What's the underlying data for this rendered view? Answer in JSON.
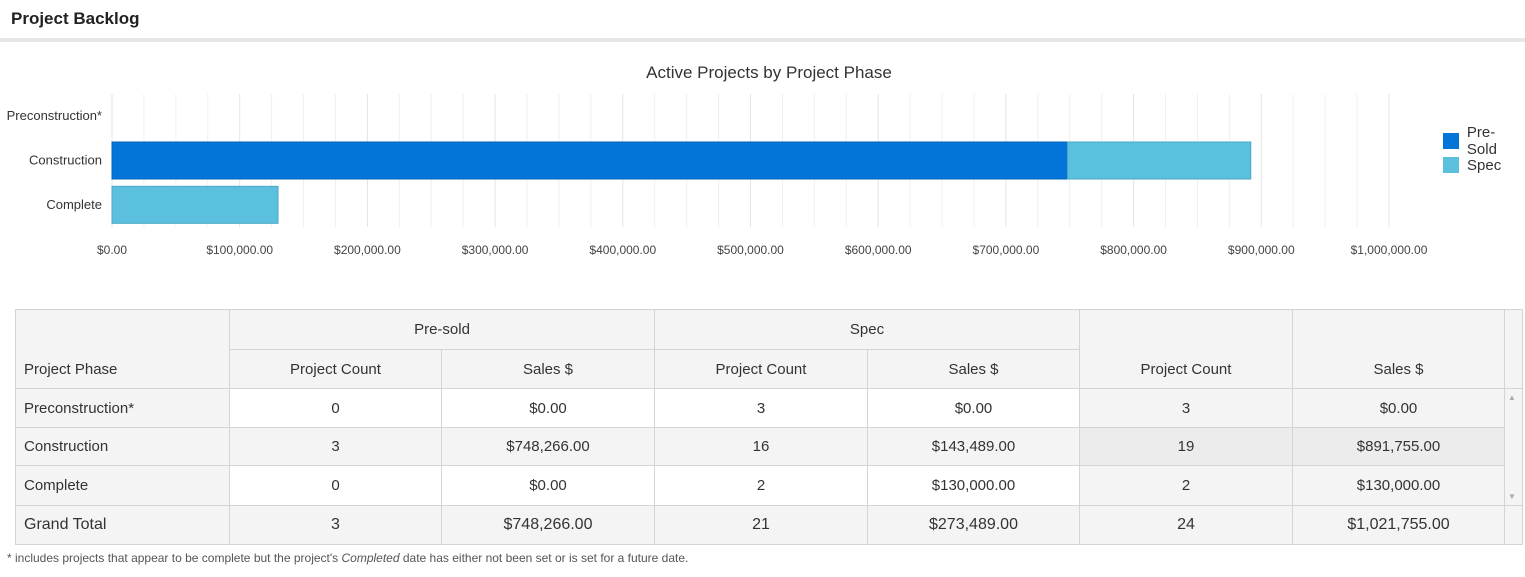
{
  "header": {
    "title": "Project Backlog"
  },
  "chart_data": {
    "type": "bar",
    "orientation": "horizontal",
    "stacked": true,
    "title": "Active Projects by Project Phase",
    "categories": [
      "Preconstruction*",
      "Construction",
      "Complete"
    ],
    "series": [
      {
        "name": "Pre-Sold",
        "color": "#0375d8",
        "values": [
          0,
          748266,
          0
        ]
      },
      {
        "name": "Spec",
        "color": "#5bc0de",
        "values": [
          0,
          143489,
          130000
        ]
      }
    ],
    "xlim": [
      0,
      1000000
    ],
    "xticks": [
      0,
      100000,
      200000,
      300000,
      400000,
      500000,
      600000,
      700000,
      800000,
      900000,
      1000000
    ],
    "xtick_labels": [
      "$0.00",
      "$100,000.00",
      "$200,000.00",
      "$300,000.00",
      "$400,000.00",
      "$500,000.00",
      "$600,000.00",
      "$700,000.00",
      "$800,000.00",
      "$900,000.00",
      "$1,000,000.00"
    ],
    "grid": true,
    "legend_position": "right"
  },
  "table": {
    "group_presold": "Pre-sold",
    "group_spec": "Spec",
    "col_phase": "Project Phase",
    "col_count": "Project Count",
    "col_sales": "Sales $",
    "rows": [
      {
        "phase": "Preconstruction*",
        "pre_count": "0",
        "pre_sales": "$0.00",
        "spec_count": "3",
        "spec_sales": "$0.00",
        "tot_count": "3",
        "tot_sales": "$0.00"
      },
      {
        "phase": "Construction",
        "pre_count": "3",
        "pre_sales": "$748,266.00",
        "spec_count": "16",
        "spec_sales": "$143,489.00",
        "tot_count": "19",
        "tot_sales": "$891,755.00"
      },
      {
        "phase": "Complete",
        "pre_count": "0",
        "pre_sales": "$0.00",
        "spec_count": "2",
        "spec_sales": "$130,000.00",
        "tot_count": "2",
        "tot_sales": "$130,000.00"
      }
    ],
    "grand_total": {
      "label": "Grand Total",
      "pre_count": "3",
      "pre_sales": "$748,266.00",
      "spec_count": "21",
      "spec_sales": "$273,489.00",
      "tot_count": "24",
      "tot_sales": "$1,021,755.00"
    }
  },
  "footnote": {
    "before": "* includes projects that appear to be complete but the project's ",
    "em": "Completed",
    "after": " date has either not been set or is set for a future date."
  }
}
